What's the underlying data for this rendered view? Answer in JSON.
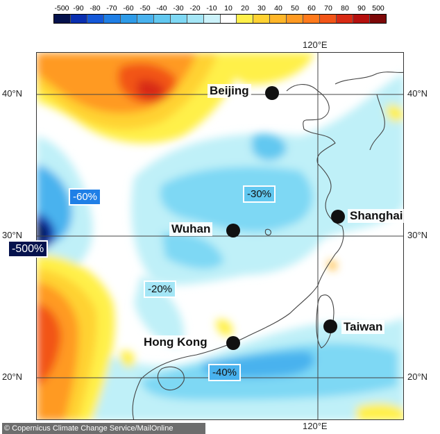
{
  "scale": {
    "labels": [
      "-500",
      "-90",
      "-80",
      "-70",
      "-60",
      "-50",
      "-40",
      "-30",
      "-20",
      "-10",
      "10",
      "20",
      "30",
      "40",
      "50",
      "60",
      "70",
      "80",
      "90",
      "500"
    ],
    "colors": [
      "#05124d",
      "#0a2fb0",
      "#1458d8",
      "#1f7fe6",
      "#2e9be8",
      "#49b2ee",
      "#62c8f0",
      "#7ed8f4",
      "#a4e6f6",
      "#ccf2fa",
      "#ffffff",
      "#fff04a",
      "#ffd233",
      "#ffb629",
      "#ff9a22",
      "#ff7a1c",
      "#f25518",
      "#d82a14",
      "#b5100e",
      "#7d0808"
    ]
  },
  "axes": {
    "lon_top": "120°E",
    "lon_bottom": "120°E",
    "lat_40_left": "40°N",
    "lat_40_right": "40°N",
    "lat_30_left": "30°N",
    "lat_30_right": "30°N",
    "lat_20_left": "20°N",
    "lat_20_right": "20°N"
  },
  "cities": {
    "beijing": "Beijing",
    "shanghai": "Shanghai",
    "wuhan": "Wuhan",
    "hong_kong": "Hong Kong",
    "taiwan": "Taiwan"
  },
  "annotations": {
    "minus_500": "-500%",
    "minus_60": "-60%",
    "minus_30": "-30%",
    "minus_20": "-20%",
    "minus_40": "-40%"
  },
  "credit": "© Copernicus Climate Change Service/MailOnline"
}
